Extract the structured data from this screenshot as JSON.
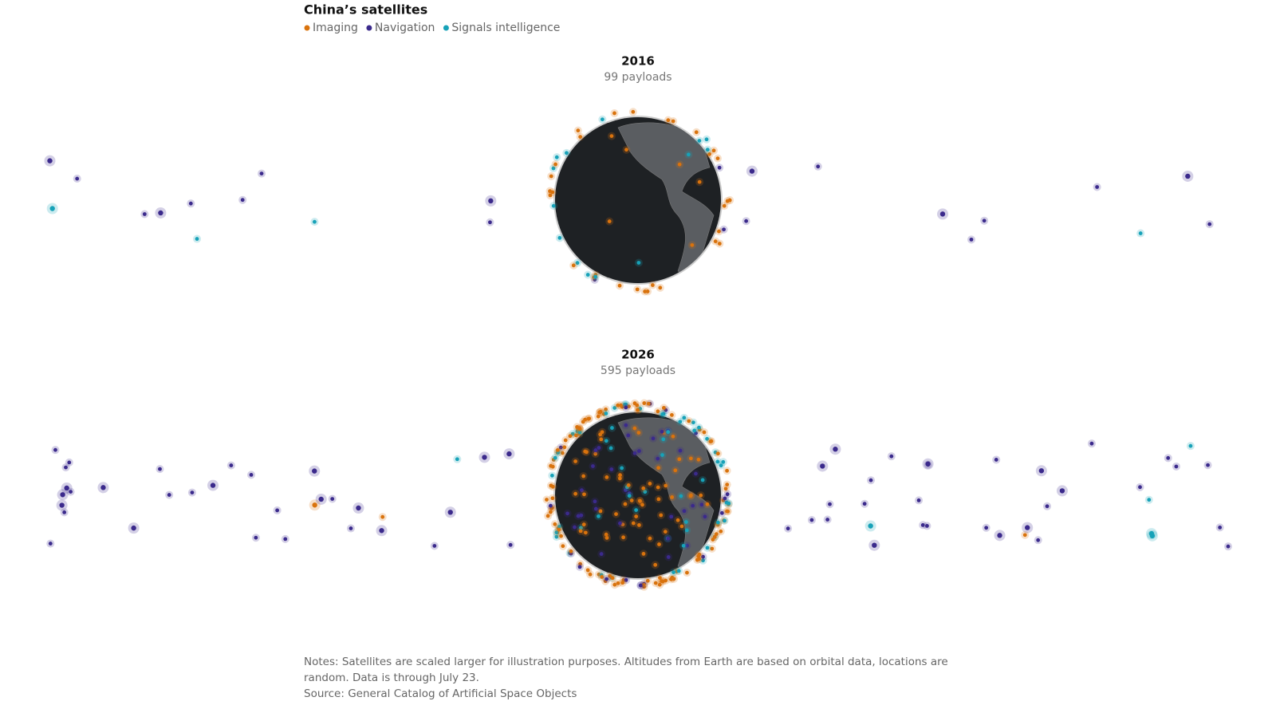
{
  "title": "China’s satellites",
  "legend": [
    {
      "name": "Imaging",
      "color": "#d9730d"
    },
    {
      "name": "Navigation",
      "color": "#3b2a8c"
    },
    {
      "name": "Signals intelligence",
      "color": "#17a2b8"
    }
  ],
  "panels": [
    {
      "year": "2016",
      "payloads": "99 payloads"
    },
    {
      "year": "2026",
      "payloads": "595 payloads"
    }
  ],
  "notes": [
    "Notes: Satellites are scaled larger for illustration purposes. Altitudes from Earth are based on orbital data, locations are",
    "random. Data is through July 23."
  ],
  "source": "Source: General Catalog of Artificial Space Objects"
}
